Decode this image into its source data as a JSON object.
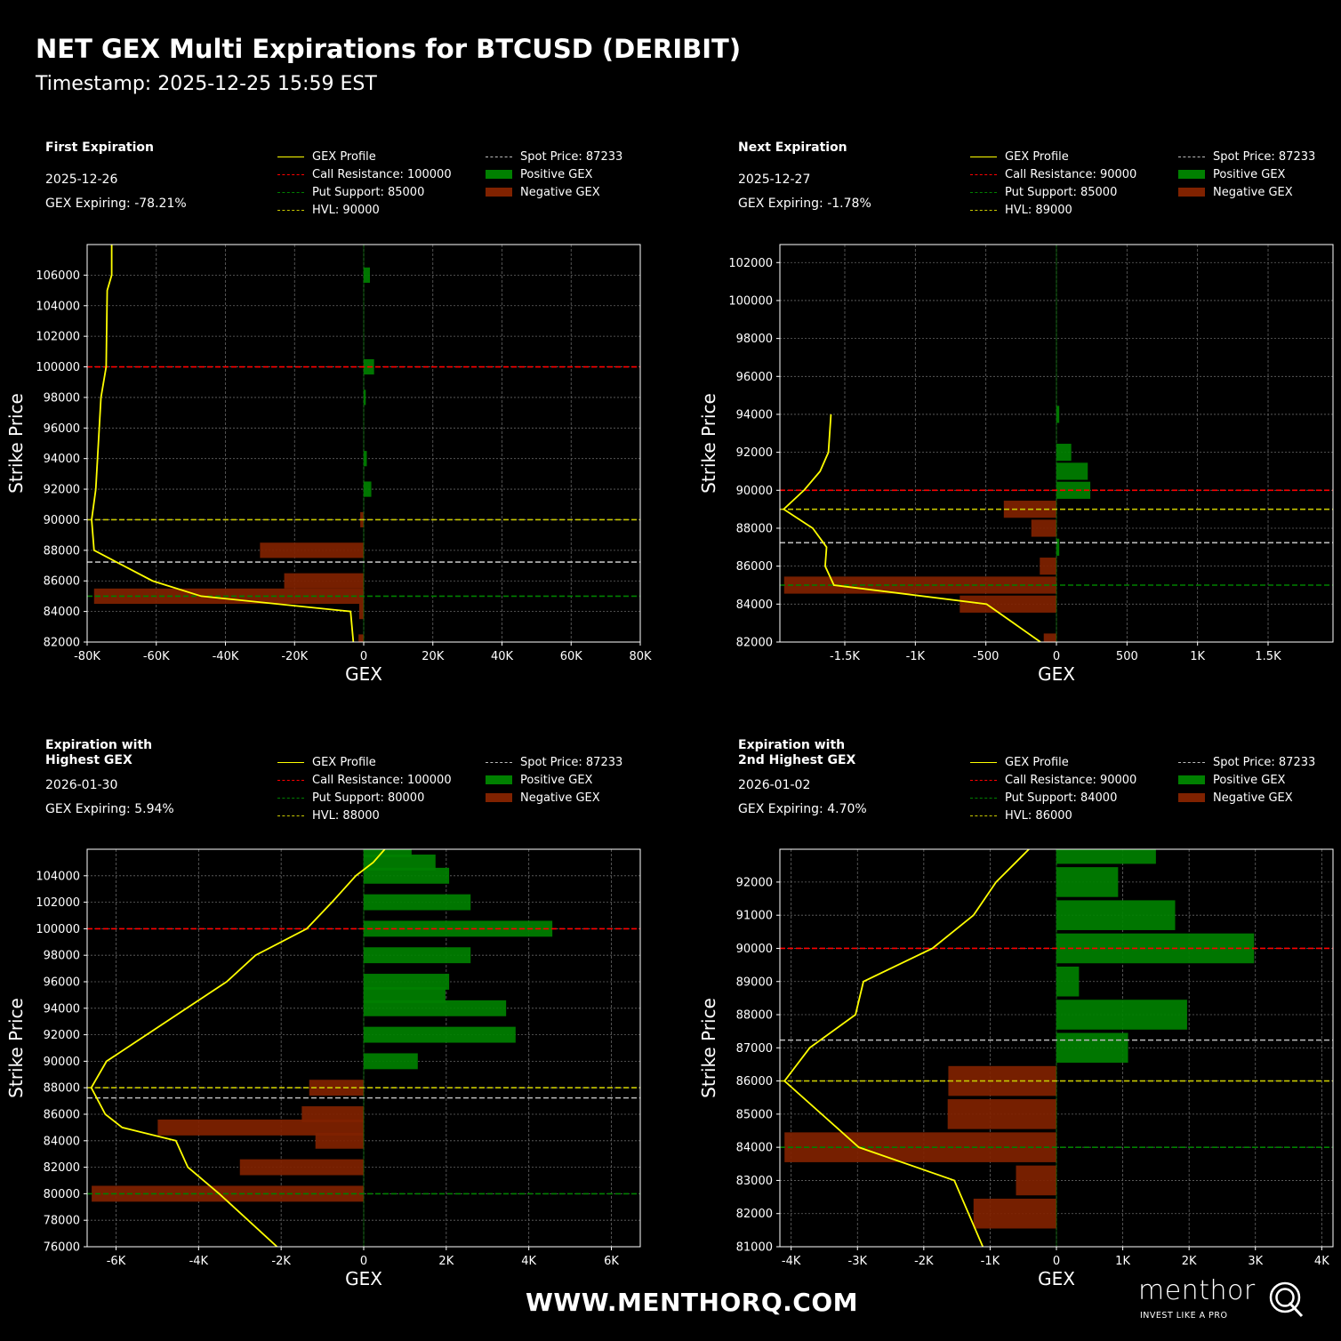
{
  "header": {
    "title": "NET GEX Multi Expirations for BTCUSD (DERIBIT)",
    "timestamp": "Timestamp: 2025-12-25 15:59 EST"
  },
  "footer": {
    "url": "WWW.MENTHORQ.COM",
    "logo_word": "menthor",
    "logo_tagline": "INVEST LIKE A PRO"
  },
  "colors": {
    "background": "#000000",
    "gex_profile": "#ffff00",
    "call_resistance": "#ff0000",
    "put_support": "#008000",
    "hvl": "#c8c800",
    "spot": "#bbbbbb",
    "positive_gex": "#008000",
    "negative_gex": "#802200",
    "grid": "#666666"
  },
  "panels": [
    {
      "name_lines": [
        "First Expiration"
      ],
      "date": "2025-12-26",
      "gex_expiring": "GEX Expiring: -78.21%",
      "legend": [
        "GEX Profile",
        "Call Resistance: 100000",
        "Put Support: 85000",
        "HVL: 90000",
        "Spot Price: 87233",
        "Positive GEX",
        "Negative GEX"
      ]
    },
    {
      "name_lines": [
        "Next Expiration"
      ],
      "date": "2025-12-27",
      "gex_expiring": "GEX Expiring: -1.78%",
      "legend": [
        "GEX Profile",
        "Call Resistance: 90000",
        "Put Support: 85000",
        "HVL: 89000",
        "Spot Price: 87233",
        "Positive GEX",
        "Negative GEX"
      ]
    },
    {
      "name_lines": [
        "Expiration with",
        "Highest GEX"
      ],
      "date": "2026-01-30",
      "gex_expiring": "GEX Expiring: 5.94%",
      "legend": [
        "GEX Profile",
        "Call Resistance: 100000",
        "Put Support: 80000",
        "HVL: 88000",
        "Spot Price: 87233",
        "Positive GEX",
        "Negative GEX"
      ]
    },
    {
      "name_lines": [
        "Expiration with",
        "2nd Highest GEX"
      ],
      "date": "2026-01-02",
      "gex_expiring": "GEX Expiring: 4.70%",
      "legend": [
        "GEX Profile",
        "Call Resistance: 90000",
        "Put Support: 84000",
        "HVL: 86000",
        "Spot Price: 87233",
        "Positive GEX",
        "Negative GEX"
      ]
    }
  ],
  "chart_data": [
    {
      "type": "bar",
      "orientation": "horizontal",
      "xlabel": "GEX",
      "ylabel": "Strike Price",
      "xlim": [
        -80000,
        80000
      ],
      "ylim": [
        82000,
        108000
      ],
      "xticks": [
        -80000,
        -60000,
        -40000,
        -20000,
        0,
        20000,
        40000,
        60000,
        80000
      ],
      "xtick_labels": [
        "-80K",
        "-60K",
        "-40K",
        "-20K",
        "0",
        "20K",
        "40K",
        "60K",
        "80K"
      ],
      "yticks": [
        82000,
        84000,
        86000,
        88000,
        90000,
        92000,
        94000,
        96000,
        98000,
        100000,
        102000,
        104000,
        106000
      ],
      "grid": true,
      "bar_width": 1000,
      "bars": [
        {
          "strike": 106000,
          "gex": 1800
        },
        {
          "strike": 100000,
          "gex": 3000
        },
        {
          "strike": 98000,
          "gex": 600
        },
        {
          "strike": 94000,
          "gex": 900
        },
        {
          "strike": 92000,
          "gex": 2200
        },
        {
          "strike": 90000,
          "gex": -1000
        },
        {
          "strike": 88000,
          "gex": -30000
        },
        {
          "strike": 86000,
          "gex": -23000
        },
        {
          "strike": 85000,
          "gex": -78000
        },
        {
          "strike": 84000,
          "gex": -1300
        },
        {
          "strike": 82000,
          "gex": -1500
        }
      ],
      "profile": [
        [
          108000,
          -72900
        ],
        [
          106000,
          -72900
        ],
        [
          105000,
          -74200
        ],
        [
          100000,
          -74500
        ],
        [
          98000,
          -76000
        ],
        [
          92000,
          -77500
        ],
        [
          90000,
          -78700
        ],
        [
          88000,
          -78000
        ],
        [
          86000,
          -61100
        ],
        [
          85000,
          -47000
        ],
        [
          84000,
          -3800
        ],
        [
          82000,
          -3000
        ]
      ],
      "levels": {
        "call_resistance": 100000,
        "put_support": 85000,
        "hvl": 90000,
        "spot": 87233
      }
    },
    {
      "type": "bar",
      "orientation": "horizontal",
      "xlabel": "GEX",
      "ylabel": "Strike Price",
      "xlim": [
        -1960,
        1960
      ],
      "ylim": [
        82000,
        102950
      ],
      "xticks": [
        -1500,
        -1000,
        -500,
        0,
        500,
        1000,
        1500
      ],
      "xtick_labels": [
        "-1.5K",
        "-1K",
        "-500",
        "0",
        "500",
        "1K",
        "1.5K"
      ],
      "yticks": [
        82000,
        84000,
        86000,
        88000,
        90000,
        92000,
        94000,
        96000,
        98000,
        100000,
        102000
      ],
      "grid": true,
      "bar_width": 900,
      "bars": [
        {
          "strike": 94000,
          "gex": 20
        },
        {
          "strike": 92000,
          "gex": 105
        },
        {
          "strike": 91000,
          "gex": 222
        },
        {
          "strike": 90000,
          "gex": 240
        },
        {
          "strike": 89000,
          "gex": -373
        },
        {
          "strike": 88000,
          "gex": -178
        },
        {
          "strike": 87000,
          "gex": 20
        },
        {
          "strike": 86000,
          "gex": -118
        },
        {
          "strike": 85000,
          "gex": -1930
        },
        {
          "strike": 84000,
          "gex": -685
        },
        {
          "strike": 82000,
          "gex": -90
        }
      ],
      "profile": [
        [
          94000,
          -1598
        ],
        [
          92000,
          -1616
        ],
        [
          91000,
          -1675
        ],
        [
          90000,
          -1789
        ],
        [
          89000,
          -1933
        ],
        [
          88000,
          -1727
        ],
        [
          87000,
          -1629
        ],
        [
          86000,
          -1639
        ],
        [
          85000,
          -1577
        ],
        [
          84000,
          -495
        ],
        [
          82000,
          -113
        ]
      ],
      "levels": {
        "call_resistance": 90000,
        "put_support": 85000,
        "hvl": 89000,
        "spot": 87233
      }
    },
    {
      "type": "bar",
      "orientation": "horizontal",
      "xlabel": "GEX",
      "ylabel": "Strike Price",
      "xlim": [
        -6700,
        6700
      ],
      "ylim": [
        76000,
        106000
      ],
      "xticks": [
        -6000,
        -4000,
        -2000,
        0,
        2000,
        4000,
        6000
      ],
      "xtick_labels": [
        "-6K",
        "-4K",
        "-2K",
        "0",
        "2K",
        "4K",
        "6K"
      ],
      "yticks": [
        76000,
        78000,
        80000,
        82000,
        84000,
        86000,
        88000,
        90000,
        92000,
        94000,
        96000,
        98000,
        100000,
        102000,
        104000
      ],
      "grid": true,
      "bar_width": 1200,
      "bars": [
        {
          "strike": 106000,
          "gex": 1160
        },
        {
          "strike": 105000,
          "gex": 1740
        },
        {
          "strike": 104000,
          "gex": 2070
        },
        {
          "strike": 102000,
          "gex": 2590
        },
        {
          "strike": 100000,
          "gex": 4570
        },
        {
          "strike": 98000,
          "gex": 2590
        },
        {
          "strike": 96000,
          "gex": 2070
        },
        {
          "strike": 95000,
          "gex": 1980
        },
        {
          "strike": 94000,
          "gex": 3450
        },
        {
          "strike": 92000,
          "gex": 3680
        },
        {
          "strike": 90000,
          "gex": 1310
        },
        {
          "strike": 88000,
          "gex": -1320
        },
        {
          "strike": 86000,
          "gex": -1500
        },
        {
          "strike": 85000,
          "gex": -4990
        },
        {
          "strike": 84000,
          "gex": -1170
        },
        {
          "strike": 82000,
          "gex": -3000
        },
        {
          "strike": 80000,
          "gex": -6590
        }
      ],
      "profile": [
        [
          106000,
          510
        ],
        [
          105000,
          230
        ],
        [
          104000,
          -190
        ],
        [
          102000,
          -770
        ],
        [
          100000,
          -1380
        ],
        [
          98000,
          -2620
        ],
        [
          96000,
          -3320
        ],
        [
          90000,
          -6230
        ],
        [
          88000,
          -6600
        ],
        [
          86000,
          -6260
        ],
        [
          85000,
          -5850
        ],
        [
          84000,
          -4550
        ],
        [
          82000,
          -4260
        ],
        [
          80000,
          -3500
        ],
        [
          76000,
          -2100
        ]
      ],
      "levels": {
        "call_resistance": 100000,
        "put_support": 80000,
        "hvl": 88000,
        "spot": 87233
      }
    },
    {
      "type": "bar",
      "orientation": "horizontal",
      "xlabel": "GEX",
      "ylabel": "Strike Price",
      "xlim": [
        -4170,
        4170
      ],
      "ylim": [
        81000,
        92990
      ],
      "xticks": [
        -4000,
        -3000,
        -2000,
        -1000,
        0,
        1000,
        2000,
        3000,
        4000
      ],
      "xtick_labels": [
        "-4K",
        "-3K",
        "-2K",
        "-1K",
        "0",
        "1K",
        "2K",
        "3K",
        "4K"
      ],
      "yticks": [
        81000,
        82000,
        83000,
        84000,
        85000,
        86000,
        87000,
        88000,
        89000,
        90000,
        91000,
        92000
      ],
      "grid": true,
      "bar_width": 900,
      "bars": [
        {
          "strike": 93000,
          "gex": 1500
        },
        {
          "strike": 92000,
          "gex": 930
        },
        {
          "strike": 91000,
          "gex": 1790
        },
        {
          "strike": 90000,
          "gex": 2980
        },
        {
          "strike": 89000,
          "gex": 340
        },
        {
          "strike": 88000,
          "gex": 1970
        },
        {
          "strike": 87000,
          "gex": 1080
        },
        {
          "strike": 86000,
          "gex": -1630
        },
        {
          "strike": 85000,
          "gex": -1640
        },
        {
          "strike": 84000,
          "gex": -4100
        },
        {
          "strike": 83000,
          "gex": -610
        },
        {
          "strike": 82000,
          "gex": -1250
        }
      ],
      "profile": [
        [
          93000,
          -410
        ],
        [
          92000,
          -910
        ],
        [
          91000,
          -1250
        ],
        [
          90000,
          -1870
        ],
        [
          89000,
          -2910
        ],
        [
          88000,
          -3030
        ],
        [
          87000,
          -3720
        ],
        [
          86000,
          -4100
        ],
        [
          85000,
          -3540
        ],
        [
          84000,
          -2980
        ],
        [
          83000,
          -1540
        ],
        [
          81000,
          -1110
        ]
      ],
      "levels": {
        "call_resistance": 90000,
        "put_support": 84000,
        "hvl": 86000,
        "spot": 87233
      }
    }
  ]
}
